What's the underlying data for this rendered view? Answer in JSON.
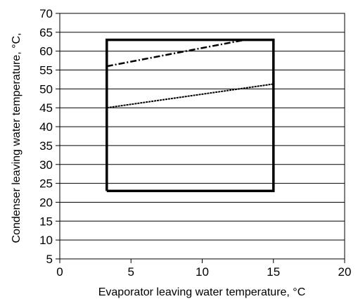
{
  "chart_data": {
    "type": "line",
    "title": "",
    "xlabel": "Evaporator leaving water temperature, °C",
    "ylabel": "Condenser leaving water temperature, °C,",
    "xlim": [
      0,
      20
    ],
    "ylim": [
      5,
      70
    ],
    "xticks": [
      0,
      5,
      10,
      15,
      20
    ],
    "yticks": [
      5,
      10,
      15,
      20,
      25,
      30,
      35,
      40,
      45,
      50,
      55,
      60,
      65,
      70
    ],
    "grid": "horizontal",
    "series": [
      {
        "style": "solid",
        "color": "#000000",
        "x": [
          3.3,
          3.3,
          15,
          15,
          3.3
        ],
        "y": [
          23,
          63,
          63,
          23,
          23
        ]
      },
      {
        "style": "dash-dot",
        "color": "#000000",
        "x": [
          3.3,
          13
        ],
        "y": [
          56,
          63
        ]
      },
      {
        "style": "dashed",
        "color": "#000000",
        "x": [
          3.3,
          15
        ],
        "y": [
          45,
          51.3
        ]
      }
    ]
  }
}
